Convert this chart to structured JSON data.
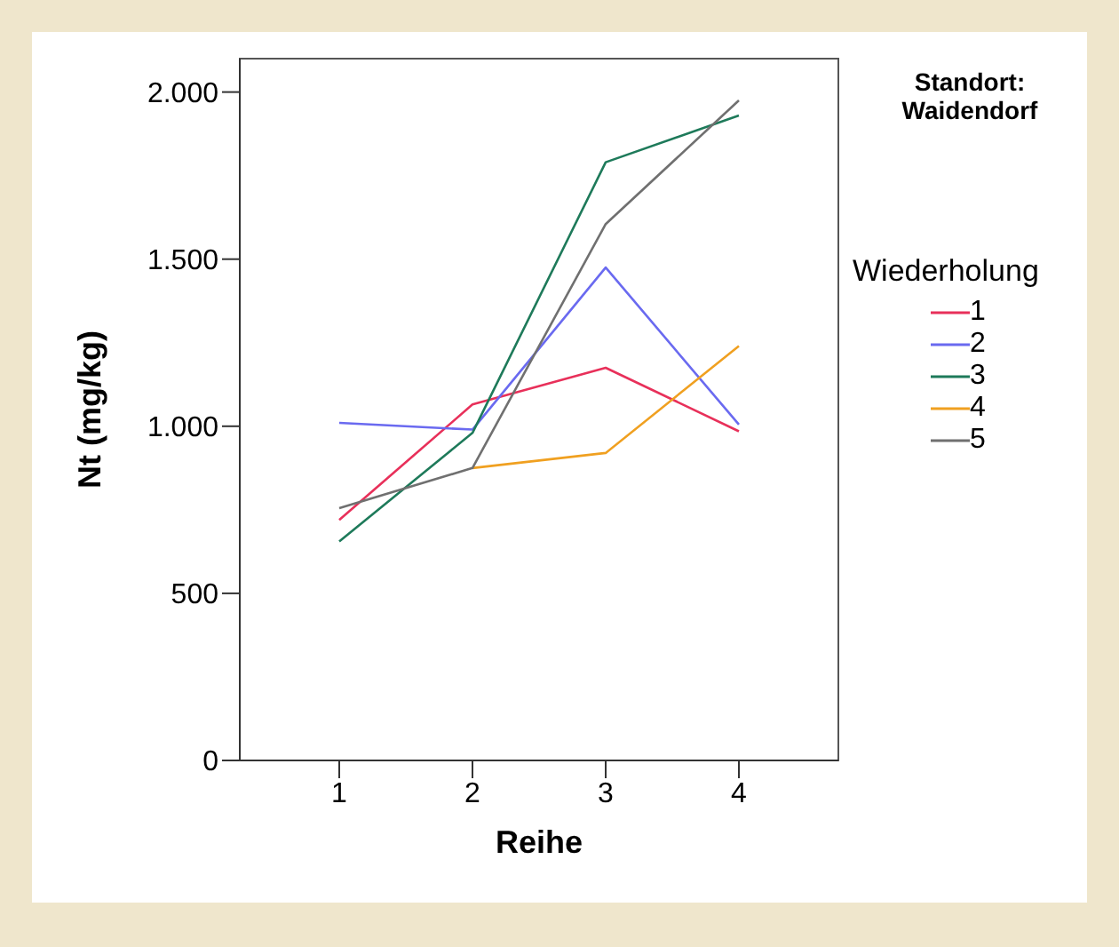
{
  "chart_data": {
    "type": "line",
    "title": "Standort: Waidendorf",
    "xlabel": "Reihe",
    "ylabel": "Nt (mg/kg)",
    "legend_title": "Wiederholung",
    "categories": [
      "1",
      "2",
      "3",
      "4"
    ],
    "series": [
      {
        "name": "1",
        "color": "#e8305a",
        "values": [
          720,
          1065,
          1175,
          985
        ]
      },
      {
        "name": "2",
        "color": "#6a6af0",
        "values": [
          1010,
          990,
          1475,
          1005
        ]
      },
      {
        "name": "3",
        "color": "#1e7a5a",
        "values": [
          655,
          980,
          1790,
          1930
        ]
      },
      {
        "name": "4",
        "color": "#f0a020",
        "values": [
          null,
          875,
          920,
          1240
        ]
      },
      {
        "name": "5",
        "color": "#707070",
        "values": [
          755,
          875,
          1605,
          1975
        ]
      }
    ],
    "ylim": [
      0,
      2100
    ],
    "yticks": [
      {
        "value": 0,
        "label": "0"
      },
      {
        "value": 500,
        "label": "500"
      },
      {
        "value": 1000,
        "label": "1.000"
      },
      {
        "value": 1500,
        "label": "1.500"
      },
      {
        "value": 2000,
        "label": "2.000"
      }
    ],
    "grid": false,
    "legend": "right",
    "marker": "none",
    "line_style": "solid"
  }
}
